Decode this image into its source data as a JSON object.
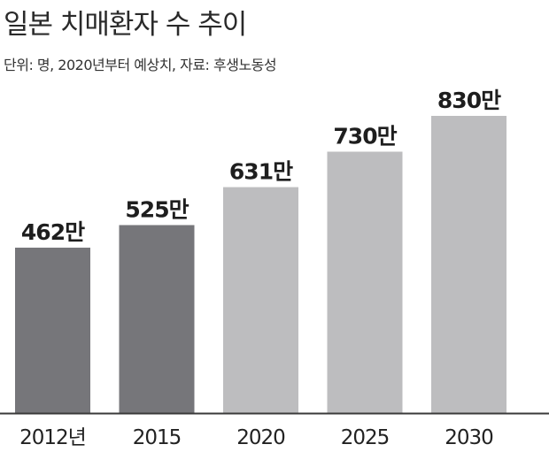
{
  "title": "일본 치매환자 수 추이",
  "subtitle": "단위: 명, 2020년부터 예상치, 자료: 후생노동성",
  "chart_data": {
    "type": "bar",
    "title": "일본 치매환자 수 추이",
    "subtitle": "단위: 명, 2020년부터 예상치, 자료: 후생노동성",
    "categories": [
      "2012년",
      "2015",
      "2020",
      "2025",
      "2030"
    ],
    "values": [
      462,
      525,
      631,
      730,
      830
    ],
    "value_labels": [
      "462만",
      "525만",
      "631만",
      "730만",
      "830만"
    ],
    "unit": "만",
    "ylim": [
      0,
      830
    ],
    "estimate_from_index": 2,
    "grid": false,
    "colors": {
      "actual": "#76767a",
      "estimate": "#bdbdbf",
      "baseline": "#3a3a3a"
    }
  }
}
